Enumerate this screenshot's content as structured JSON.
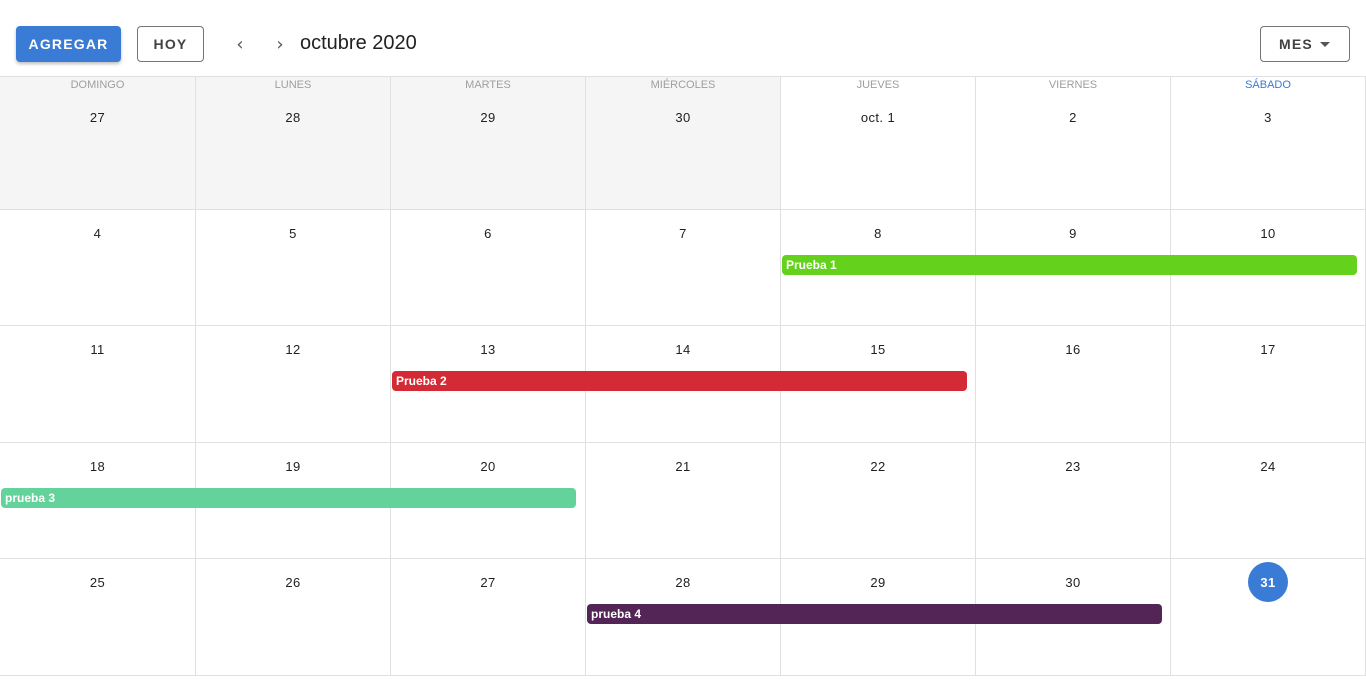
{
  "toolbar": {
    "add_label": "AGREGAR",
    "today_label": "HOY",
    "prev_icon": "‹",
    "next_icon": "›",
    "title": "octubre 2020",
    "view_label": "MES"
  },
  "weekdays": [
    "DOMINGO",
    "LUNES",
    "MARTES",
    "MIÉRCOLES",
    "JUEVES",
    "VIERNES",
    "SÁBADO"
  ],
  "weeks": [
    [
      "27",
      "28",
      "29",
      "30",
      "oct. 1",
      "2",
      "3"
    ],
    [
      "4",
      "5",
      "6",
      "7",
      "8",
      "9",
      "10"
    ],
    [
      "11",
      "12",
      "13",
      "14",
      "15",
      "16",
      "17"
    ],
    [
      "18",
      "19",
      "20",
      "21",
      "22",
      "23",
      "24"
    ],
    [
      "25",
      "26",
      "27",
      "28",
      "29",
      "30",
      "31"
    ]
  ],
  "outside_days_first_week": 4,
  "today": {
    "week": 4,
    "day": 6
  },
  "events": [
    {
      "name": "Prueba 1",
      "week": 1,
      "start_day": 4,
      "span_days": 3,
      "color": "#64d21c"
    },
    {
      "name": "Prueba 2",
      "week": 2,
      "start_day": 2,
      "span_days": 3,
      "color": "#d42a35"
    },
    {
      "name": "prueba 3",
      "week": 3,
      "start_day": 0,
      "span_days": 3,
      "color": "#64d29b"
    },
    {
      "name": "prueba 4",
      "week": 4,
      "start_day": 3,
      "span_days": 3,
      "color": "#532456"
    }
  ],
  "colors": {
    "accent": "#3a7bd5",
    "outside_background": "#f5f5f5",
    "grid_line": "#e0e0e0"
  }
}
